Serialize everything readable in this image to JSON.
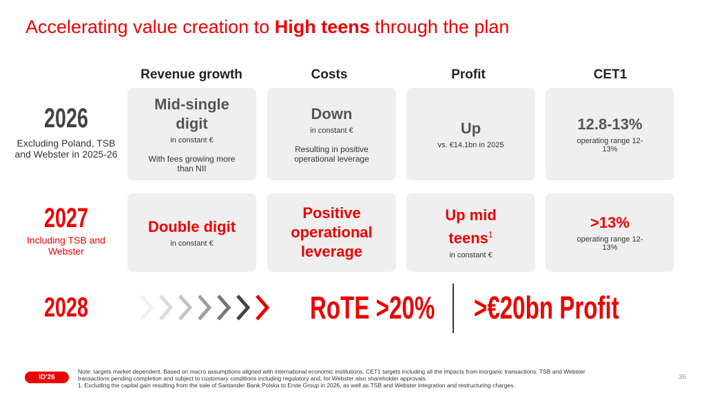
{
  "title": {
    "pre": "Accelerating value creation to ",
    "bold": "High teens",
    "post": " through the plan"
  },
  "columns": [
    "Revenue growth",
    "Costs",
    "Profit",
    "CET1"
  ],
  "rows": [
    {
      "year": "2026",
      "subtitle": "Excluding Poland, TSB and Webster in 2025-26",
      "cells": [
        {
          "main": "Mid-single digit",
          "note": "in constant €",
          "detail": "With fees growing more than NII"
        },
        {
          "main": "Down",
          "note": "in constant €",
          "detail": "Resulting in positive operational leverage"
        },
        {
          "main": "Up",
          "note": "vs. €14.1bn in 2025"
        },
        {
          "main": "12.8-13%",
          "note": "operating range 12-13%"
        }
      ]
    },
    {
      "year": "2027",
      "subtitle": "Including TSB and Webster",
      "cells": [
        {
          "main": "Double digit",
          "note": "in constant €"
        },
        {
          "main": "Positive operational leverage"
        },
        {
          "main": "Up mid teens",
          "sup": "1",
          "note": "in constant €"
        },
        {
          "main": ">13%",
          "note": "operating range 12-13%"
        }
      ]
    }
  ],
  "final": {
    "year": "2028",
    "rote": "RoTE >20%",
    "profit": ">€20bn Profit"
  },
  "footer": {
    "badge": "ID'26",
    "note": "Note: targets market dependent. Based on macro assumptions aligned with international economic institutions. CET1 targets including all the impacts from inorganic transactions. TSB and Webster transactions pending completion and subject to customary conditions including regulatory and, for Webster also shareholder approvals.",
    "footnote": "1.     Excluding the capital gain resulting from the sale of Santander Bank Polska to Erste Group in 2026, as well as TSB and Webster integration and restructuring charges.",
    "page": "36"
  }
}
